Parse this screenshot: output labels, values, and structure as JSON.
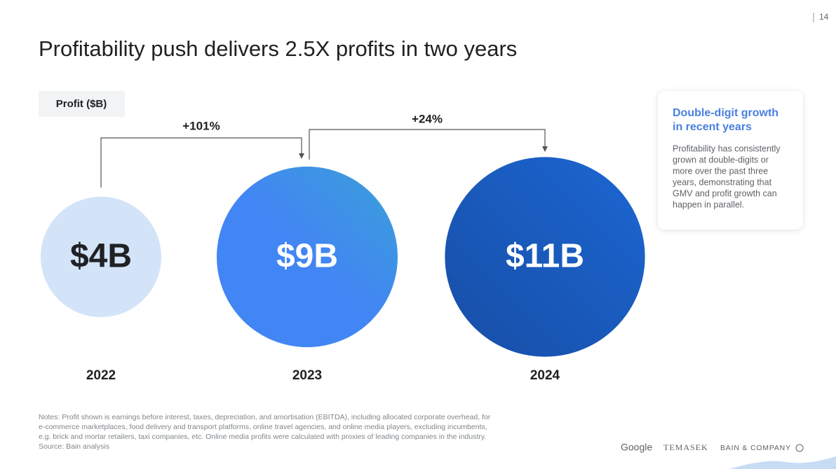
{
  "page_number": "14",
  "chart_data": {
    "type": "bubble",
    "title": "Profitability push delivers 2.5X profits in two years",
    "subtitle": "Profit ($B)",
    "categories": [
      "2022",
      "2023",
      "2024"
    ],
    "values": [
      4,
      9,
      11
    ],
    "value_labels": [
      "$4B",
      "$9B",
      "$11B"
    ],
    "colors": [
      "#d3e3f8",
      "#4285f4",
      "#1a5bc4"
    ],
    "label_colors": [
      "#202124",
      "#ffffff",
      "#ffffff"
    ],
    "annotations": [
      "+101%",
      "+24%"
    ]
  },
  "sidebar": {
    "heading": [
      "Double-digit growth",
      "in recent years"
    ],
    "body": [
      "Profitability has consistently",
      "grown at double-digits or",
      "more over the past three",
      "years, demonstrating that",
      "GMV and profit growth can",
      "happen in parallel."
    ]
  },
  "notes": [
    "Notes: Profit shown is earnings before interest, taxes, depreciation, and amortisation (EBITDA), including allocated corporate overhead, for",
    "e-commerce marketplaces, food delivery and transport platforms, online travel agencies, and online media players, excluding incumbents,",
    "e.g. brick and mortar retailers, taxi companies, etc. Online media profits were calculated with proxies of leading companies in the industry.",
    "Source: Bain analysis"
  ],
  "logos": [
    "Google",
    "TEMASEK",
    "BAIN & COMPANY"
  ]
}
